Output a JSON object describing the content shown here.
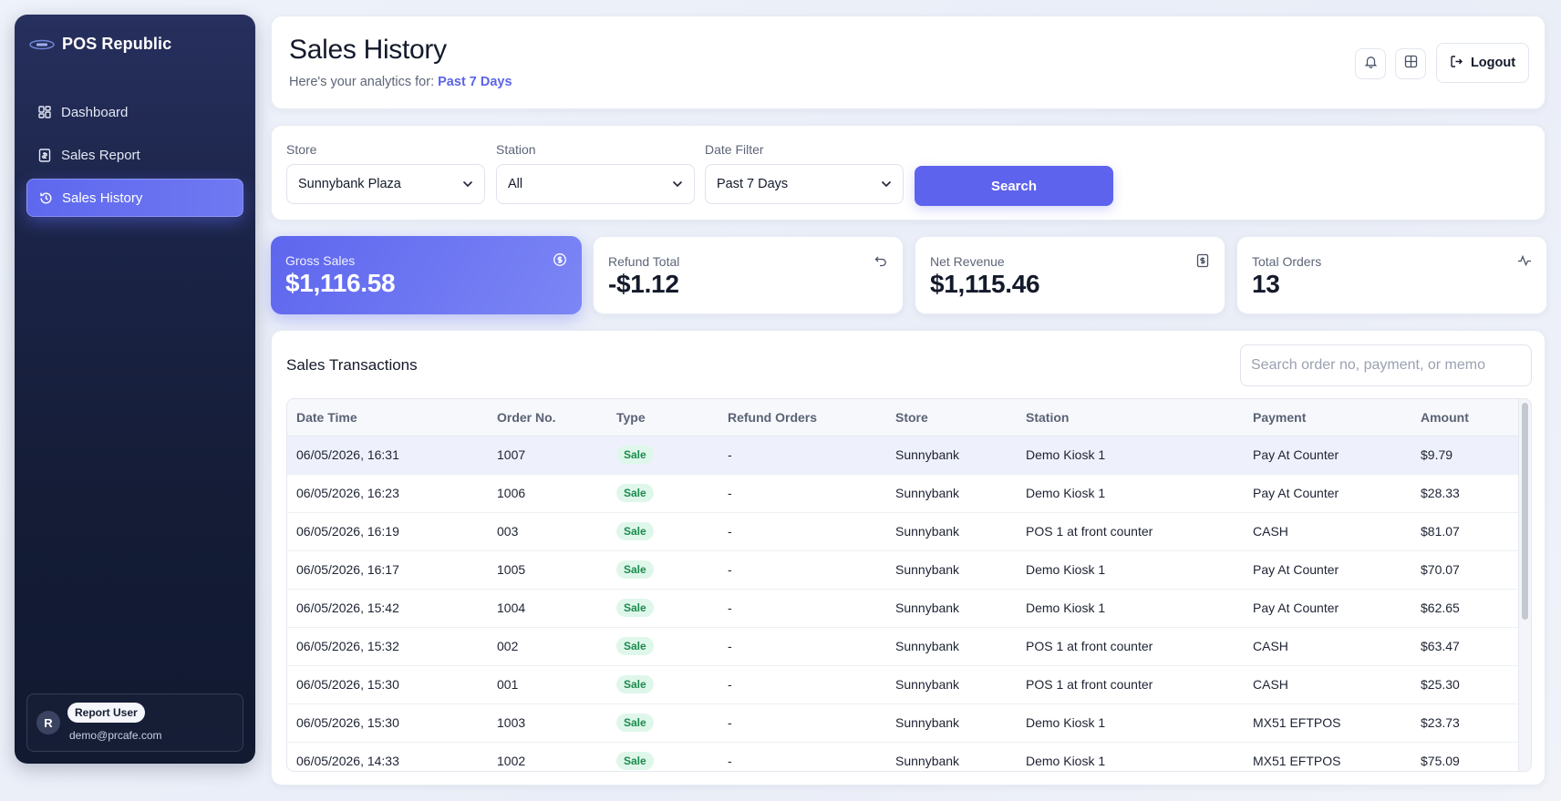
{
  "app": {
    "brand": "POS Republic"
  },
  "sidebar": {
    "items": [
      {
        "label": "Dashboard",
        "icon": "dashboard-icon",
        "active": false
      },
      {
        "label": "Sales Report",
        "icon": "report-icon",
        "active": false
      },
      {
        "label": "Sales History",
        "icon": "history-icon",
        "active": true
      }
    ],
    "user": {
      "initial": "R",
      "name": "Report User",
      "email": "demo@prcafe.com"
    }
  },
  "header": {
    "title": "Sales History",
    "subtitle_prefix": "Here's your analytics for:",
    "subtitle_period": "Past 7 Days",
    "logout_label": "Logout"
  },
  "filters": {
    "store": {
      "label": "Store",
      "value": "Sunnybank Plaza"
    },
    "station": {
      "label": "Station",
      "value": "All"
    },
    "date": {
      "label": "Date Filter",
      "value": "Past 7 Days"
    },
    "search_label": "Search"
  },
  "stats": [
    {
      "label": "Gross Sales",
      "value": "$1,116.58",
      "icon": "dollar-circle-icon"
    },
    {
      "label": "Refund Total",
      "value": "-$1.12",
      "icon": "undo-icon"
    },
    {
      "label": "Net Revenue",
      "value": "$1,115.46",
      "icon": "receipt-icon"
    },
    {
      "label": "Total Orders",
      "value": "13",
      "icon": "activity-icon"
    }
  ],
  "table": {
    "title": "Sales Transactions",
    "search_placeholder": "Search order no, payment, or memo",
    "columns": [
      "Date Time",
      "Order No.",
      "Type",
      "Refund Orders",
      "Store",
      "Station",
      "Payment",
      "Amount"
    ],
    "rows": [
      [
        "06/05/2026, 16:31",
        "1007",
        "Sale",
        "-",
        "Sunnybank",
        "Demo Kiosk 1",
        "Pay At Counter",
        "$9.79"
      ],
      [
        "06/05/2026, 16:23",
        "1006",
        "Sale",
        "-",
        "Sunnybank",
        "Demo Kiosk 1",
        "Pay At Counter",
        "$28.33"
      ],
      [
        "06/05/2026, 16:19",
        "003",
        "Sale",
        "-",
        "Sunnybank",
        "POS 1 at front counter",
        "CASH",
        "$81.07"
      ],
      [
        "06/05/2026, 16:17",
        "1005",
        "Sale",
        "-",
        "Sunnybank",
        "Demo Kiosk 1",
        "Pay At Counter",
        "$70.07"
      ],
      [
        "06/05/2026, 15:42",
        "1004",
        "Sale",
        "-",
        "Sunnybank",
        "Demo Kiosk 1",
        "Pay At Counter",
        "$62.65"
      ],
      [
        "06/05/2026, 15:32",
        "002",
        "Sale",
        "-",
        "Sunnybank",
        "POS 1 at front counter",
        "CASH",
        "$63.47"
      ],
      [
        "06/05/2026, 15:30",
        "001",
        "Sale",
        "-",
        "Sunnybank",
        "POS 1 at front counter",
        "CASH",
        "$25.30"
      ],
      [
        "06/05/2026, 15:30",
        "1003",
        "Sale",
        "-",
        "Sunnybank",
        "Demo Kiosk 1",
        "MX51 EFTPOS",
        "$23.73"
      ],
      [
        "06/05/2026, 14:33",
        "1002",
        "Sale",
        "-",
        "Sunnybank",
        "Demo Kiosk 1",
        "MX51 EFTPOS",
        "$75.09"
      ]
    ]
  },
  "colors": {
    "accent": "#5e63ee",
    "sidebar_bg": "#141c36",
    "sale_badge_bg": "#dff7ea",
    "sale_badge_text": "#1c8a4e"
  }
}
